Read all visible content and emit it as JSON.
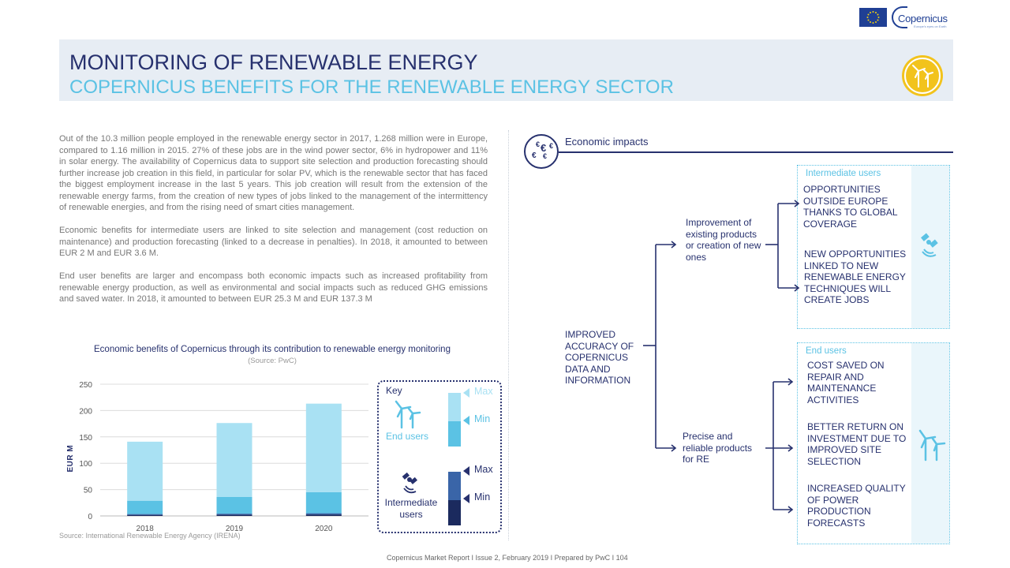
{
  "header": {
    "title": "MONITORING OF RENEWABLE ENERGY",
    "subtitle": "COPERNICUS BENEFITS FOR THE RENEWABLE ENERGY SECTOR",
    "logo_word": "Copernicus",
    "logo_tagline": "Europe's eyes on Earth",
    "icon_name": "wind-turbine-icon",
    "icon_color": "#f2c31c"
  },
  "body": {
    "paragraphs": [
      "Out of the 10.3 million people employed in the renewable energy sector in 2017, 1.268 million were in Europe, compared to 1.16 million in 2015. 27% of these jobs are in the wind power sector, 6% in hydropower and 11% in solar energy. The availability of Copernicus data to support site selection and production forecasting should further increase job creation in this field, in particular for solar PV, which is the renewable sector that has faced the biggest employment increase in the last 5 years. This job creation will result from the extension of the renewable energy farms, from the creation of new types of jobs linked to the management of the intermittency of renewable energies, and from the rising need of smart cities management.",
      "Economic benefits for intermediate users are linked to site selection and management (cost reduction on maintenance) and production forecasting (linked to a decrease in penalties). In 2018, it amounted to between EUR 2 M and EUR 3.6 M.",
      "End user benefits are larger and encompass both economic impacts such as increased profitability from renewable energy production, as well as environmental and social impacts such as reduced GHG emissions and saved water. In 2018, it amounted to between EUR 25.3 M and EUR 137.3 M"
    ]
  },
  "chart": {
    "title": "Economic benefits of Copernicus through its contribution to renewable energy monitoring",
    "source": "(Source: PwC)",
    "footnote": "Source: International Renewable Energy Agency (IRENA)"
  },
  "chart_data": {
    "type": "bar",
    "stacked": true,
    "categories": [
      "2018",
      "2019",
      "2020"
    ],
    "ylabel": "EUR M",
    "ylim": [
      0,
      250
    ],
    "yticks": [
      0,
      50,
      100,
      150,
      200,
      250
    ],
    "grid": true,
    "legend": "right",
    "series": [
      {
        "name": "Intermediate users Min",
        "color": "#1b2a5e",
        "values": [
          2.0,
          2.4,
          2.8
        ]
      },
      {
        "name": "Intermediate users Max",
        "color": "#3a65a8",
        "values": [
          1.6,
          1.9,
          2.3
        ]
      },
      {
        "name": "End users Min",
        "color": "#5bc2e4",
        "values": [
          25.3,
          32,
          40
        ]
      },
      {
        "name": "End users Max",
        "color": "#a9e1f3",
        "values": [
          112,
          140,
          168
        ]
      }
    ]
  },
  "key": {
    "title": "Key",
    "end_users": "End users",
    "intermediate_users": "Intermediate users",
    "max": "Max",
    "min": "Min"
  },
  "impacts": {
    "title": "Economic impacts",
    "root": "IMPROVED ACCURACY OF COPERNICUS DATA AND INFORMATION",
    "branch_top": "Improvement of existing products or creation of new ones",
    "branch_bottom": "Precise and reliable products for RE",
    "intermediate_head": "Intermediate users",
    "intermediate_items": [
      "OPPORTUNITIES OUTSIDE EUROPE THANKS TO GLOBAL COVERAGE",
      "NEW OPPORTUNITIES LINKED TO NEW RENEWABLE ENERGY TECHNIQUES WILL CREATE JOBS"
    ],
    "end_head": "End users",
    "end_items": [
      "COST SAVED ON REPAIR AND MAINTENANCE ACTIVITIES",
      "BETTER RETURN ON INVESTMENT DUE TO IMPROVED SITE SELECTION",
      "INCREASED QUALITY OF POWER PRODUCTION FORECASTS"
    ]
  },
  "footer": {
    "text": "Copernicus Market Report I Issue 2, February 2019 I Prepared by PwC I   104"
  }
}
